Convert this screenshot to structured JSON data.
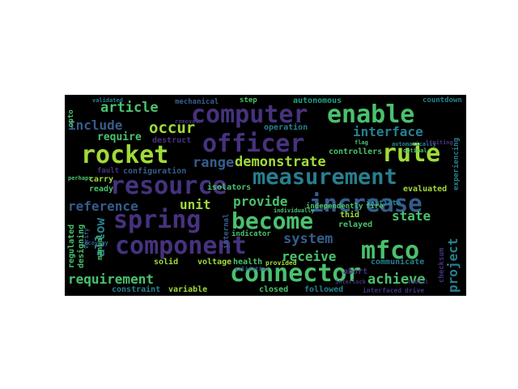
{
  "word_cloud": {
    "background": "#000000",
    "palette": [
      "#440154",
      "#46327e",
      "#365c8d",
      "#277f8e",
      "#1fa187",
      "#4ac16d",
      "#a0da39",
      "#fde725"
    ],
    "words": [
      {
        "text": "computer",
        "color": "#46327e"
      },
      {
        "text": "enable",
        "color": "#4ac16d"
      },
      {
        "text": "officer",
        "color": "#46327e"
      },
      {
        "text": "rocket",
        "color": "#a0da39"
      },
      {
        "text": "rule",
        "color": "#a0da39"
      },
      {
        "text": "measurement",
        "color": "#277f8e"
      },
      {
        "text": "resource",
        "color": "#46327e"
      },
      {
        "text": "increase",
        "color": "#365c8d"
      },
      {
        "text": "spring",
        "color": "#46327e"
      },
      {
        "text": "become",
        "color": "#4ac16d"
      },
      {
        "text": "component",
        "color": "#46327e"
      },
      {
        "text": "connector",
        "color": "#4ac16d"
      },
      {
        "text": "mfco",
        "color": "#4ac16d"
      },
      {
        "text": "demonstrate",
        "color": "#a0da39"
      },
      {
        "text": "article",
        "color": "#4ac16d"
      },
      {
        "text": "occur",
        "color": "#a0da39"
      },
      {
        "text": "include",
        "color": "#365c8d"
      },
      {
        "text": "require",
        "color": "#4ac16d"
      },
      {
        "text": "interface",
        "color": "#277f8e"
      },
      {
        "text": "range",
        "color": "#365c8d"
      },
      {
        "text": "reference",
        "color": "#365c8d"
      },
      {
        "text": "unit",
        "color": "#a0da39"
      },
      {
        "text": "provide",
        "color": "#4ac16d"
      },
      {
        "text": "state",
        "color": "#4ac16d"
      },
      {
        "text": "allow",
        "color": "#277f8e"
      },
      {
        "text": "system",
        "color": "#365c8d"
      },
      {
        "text": "receive",
        "color": "#4ac16d"
      },
      {
        "text": "requirement",
        "color": "#4ac16d"
      },
      {
        "text": "achieve",
        "color": "#4ac16d"
      },
      {
        "text": "project",
        "color": "#277f8e"
      },
      {
        "text": "operation",
        "color": "#277f8e"
      },
      {
        "text": "controllers",
        "color": "#4ac16d"
      },
      {
        "text": "mechanical",
        "color": "#365c8d"
      },
      {
        "text": "autonomous",
        "color": "#1fa187"
      },
      {
        "text": "step",
        "color": "#4ac16d"
      },
      {
        "text": "countdown",
        "color": "#277f8e"
      },
      {
        "text": "destruct",
        "color": "#46327e"
      },
      {
        "text": "configuration",
        "color": "#365c8d"
      },
      {
        "text": "fault",
        "color": "#46327e"
      },
      {
        "text": "carry",
        "color": "#a0da39"
      },
      {
        "text": "ready",
        "color": "#4ac16d"
      },
      {
        "text": "isolators",
        "color": "#4ac16d"
      },
      {
        "text": "evaluated",
        "color": "#a0da39"
      },
      {
        "text": "experiencing",
        "color": "#277f8e"
      },
      {
        "text": "initiate",
        "color": "#277f8e"
      },
      {
        "text": "thid",
        "color": "#a0da39"
      },
      {
        "text": "relayed",
        "color": "#4ac16d"
      },
      {
        "text": "communicate",
        "color": "#277f8e"
      },
      {
        "text": "abort",
        "color": "#46327e"
      },
      {
        "text": "checksum",
        "color": "#46327e"
      },
      {
        "text": "solid",
        "color": "#a0da39"
      },
      {
        "text": "voltage",
        "color": "#a0da39"
      },
      {
        "text": "health",
        "color": "#4ac16d"
      },
      {
        "text": "provided",
        "color": "#a0da39"
      },
      {
        "text": "constraint",
        "color": "#277f8e"
      },
      {
        "text": "variable",
        "color": "#a0da39"
      },
      {
        "text": "closed",
        "color": "#4ac16d"
      },
      {
        "text": "followed",
        "color": "#277f8e"
      },
      {
        "text": "interfaced",
        "color": "#46327e"
      },
      {
        "text": "drive",
        "color": "#46327e"
      },
      {
        "text": "regulated",
        "color": "#4ac16d"
      },
      {
        "text": "designing",
        "color": "#4ac16d"
      },
      {
        "text": "manual",
        "color": "#4ac16d"
      },
      {
        "text": "indicator",
        "color": "#4ac16d"
      },
      {
        "text": "internal",
        "color": "#365c8d"
      },
      {
        "text": "independently",
        "color": "#4ac16d"
      },
      {
        "text": "fire",
        "color": "#4ac16d"
      },
      {
        "text": "individually",
        "color": "#4ac16d"
      },
      {
        "text": "opto",
        "color": "#4ac16d"
      },
      {
        "text": "validated",
        "color": "#277f8e"
      },
      {
        "text": "removal",
        "color": "#46327e"
      },
      {
        "text": "flag",
        "color": "#4ac16d"
      },
      {
        "text": "optimal",
        "color": "#4ac16d"
      },
      {
        "text": "automatically",
        "color": "#277f8e"
      },
      {
        "text": "limiting",
        "color": "#46327e"
      },
      {
        "text": "recovery",
        "color": "#365c8d"
      },
      {
        "text": "perhaps",
        "color": "#4ac16d"
      },
      {
        "text": "verify",
        "color": "#365c8d"
      },
      {
        "text": "validation",
        "color": "#365c8d"
      },
      {
        "text": "interlock",
        "color": "#46327e"
      },
      {
        "text": "radial",
        "color": "#46327e"
      }
    ]
  }
}
